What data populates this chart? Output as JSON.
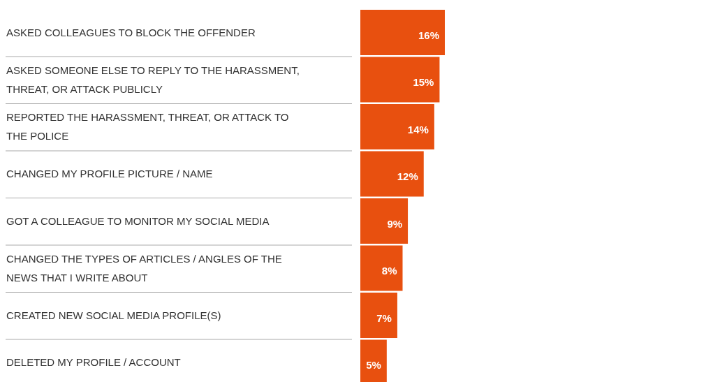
{
  "chart_data": {
    "type": "bar",
    "orientation": "horizontal",
    "categories": [
      "ASKED COLLEAGUES TO BLOCK THE OFFENDER",
      "ASKED SOMEONE ELSE TO REPLY TO THE HARASSMENT, THREAT, OR ATTACK PUBLICLY",
      "REPORTED THE HARASSMENT, THREAT, OR ATTACK TO THE POLICE",
      "CHANGED MY PROFILE PICTURE / NAME",
      "GOT A COLLEAGUE TO MONITOR MY SOCIAL MEDIA",
      "CHANGED THE TYPES OF ARTICLES / ANGLES OF THE NEWS THAT I WRITE ABOUT",
      "CREATED NEW SOCIAL MEDIA PROFILE(S)",
      "DELETED MY PROFILE / ACCOUNT"
    ],
    "values": [
      16,
      15,
      14,
      12,
      9,
      8,
      7,
      5
    ],
    "value_labels": [
      "16%",
      "15%",
      "14%",
      "12%",
      "9%",
      "8%",
      "7%",
      "5%"
    ],
    "color": "#e8500f"
  }
}
